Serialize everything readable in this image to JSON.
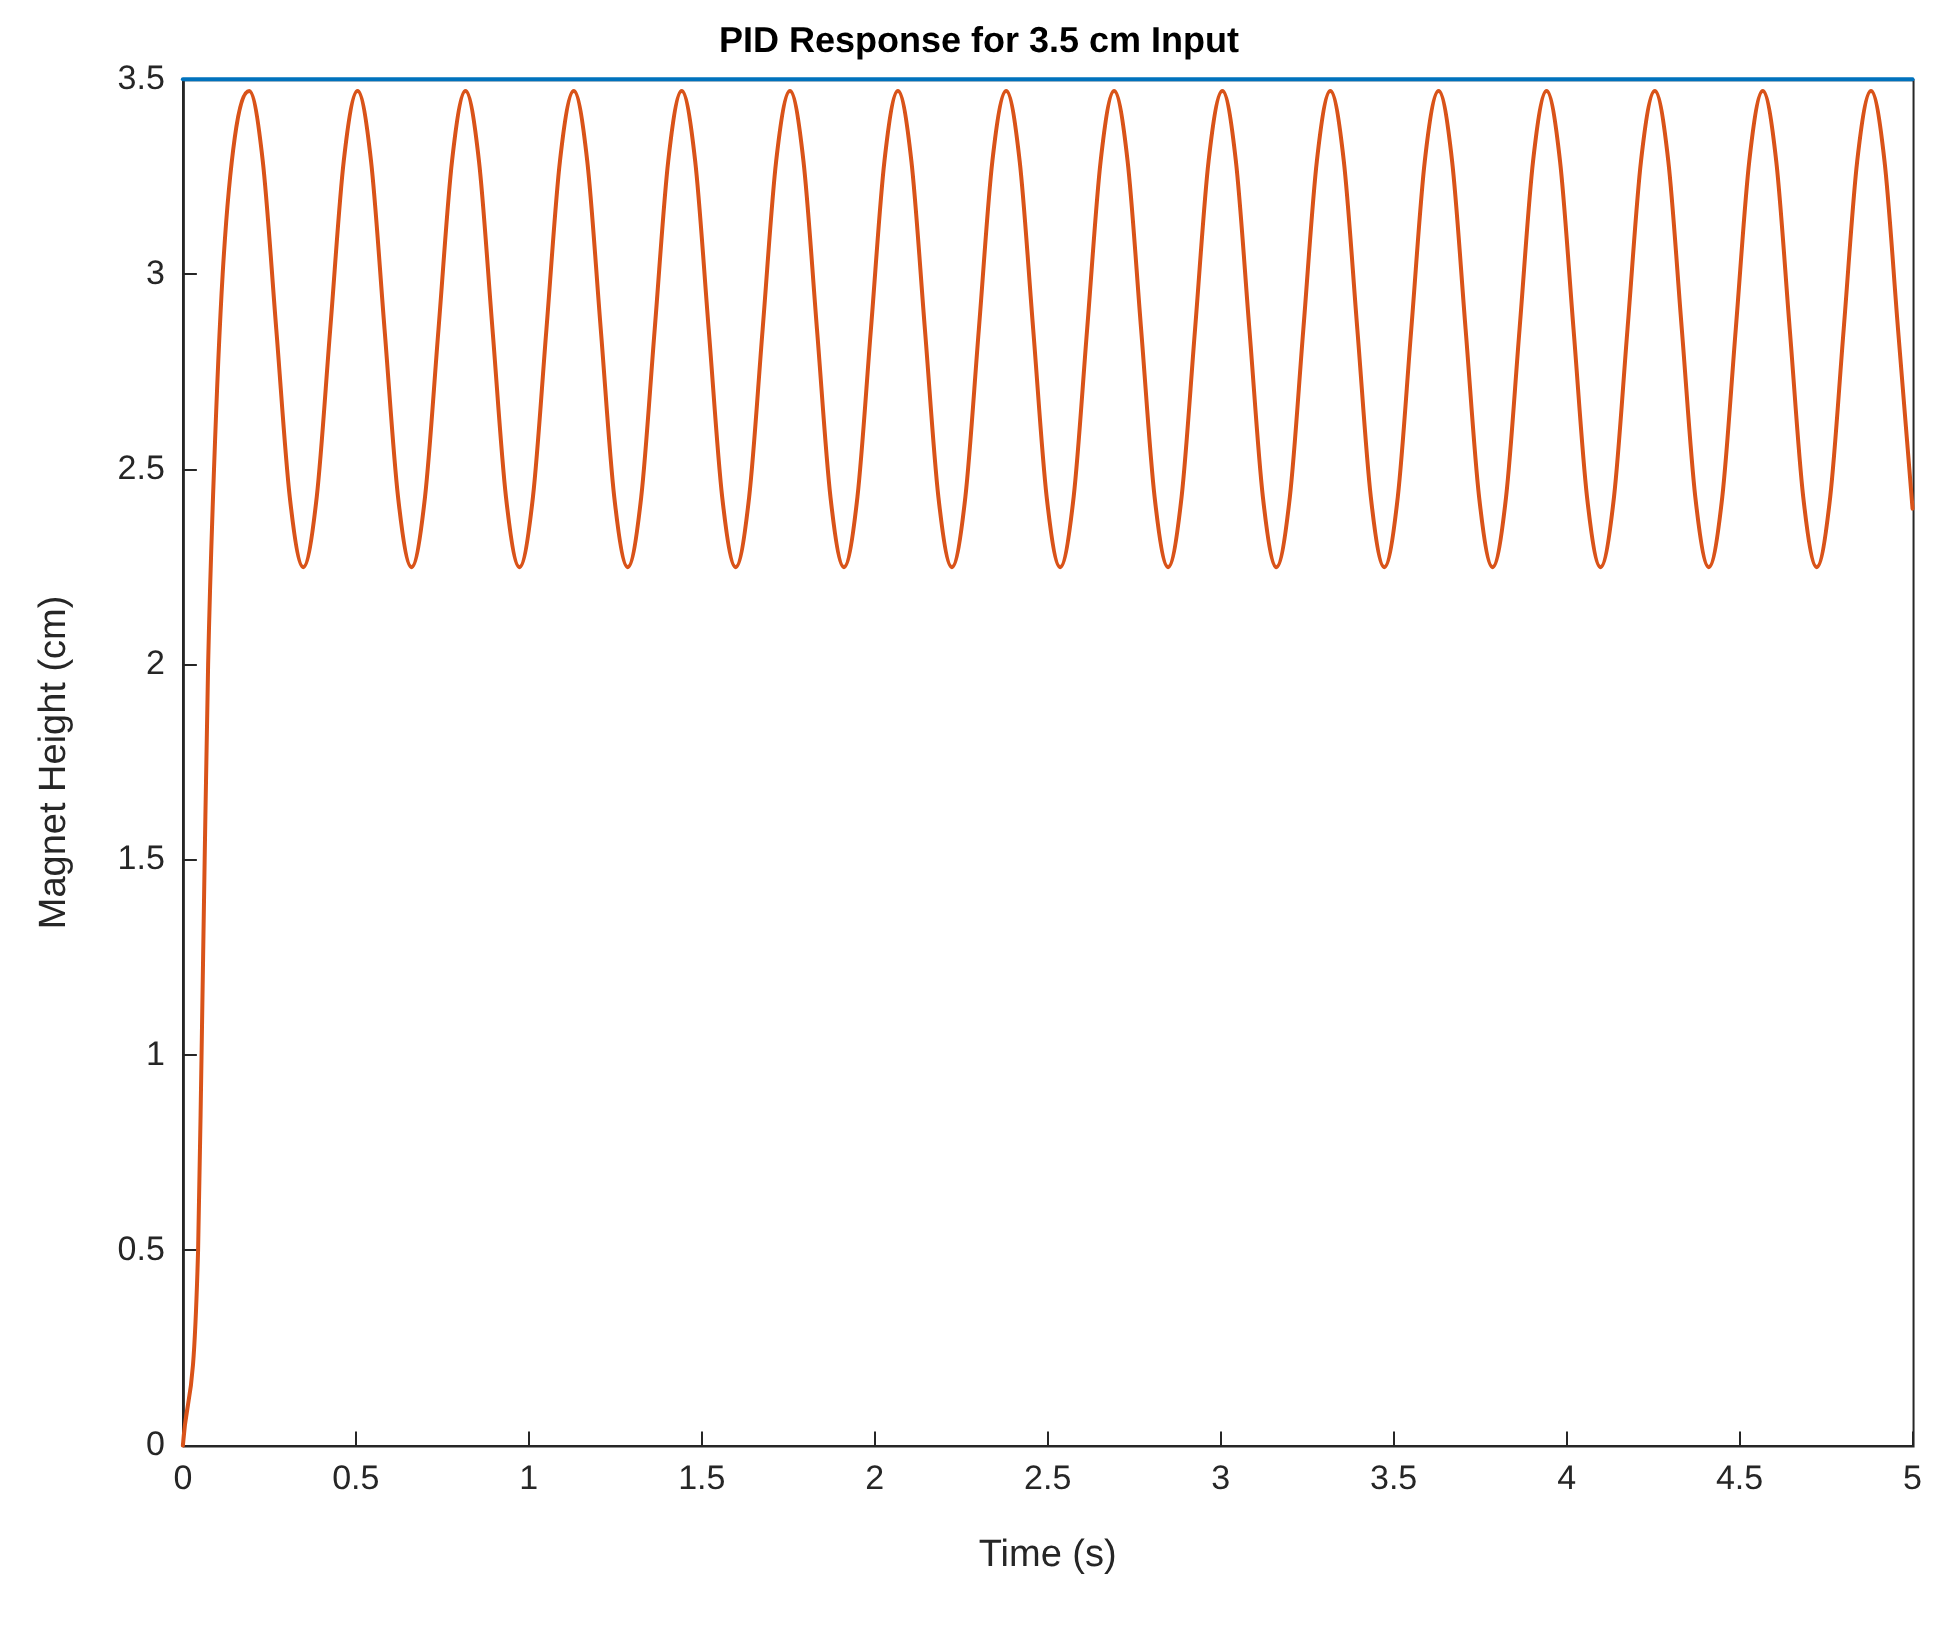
{
  "chart_data": {
    "type": "line",
    "title": "PID Response for 3.5 cm Input",
    "xlabel": "Time (s)",
    "ylabel": "Magnet Height (cm)",
    "xlim": [
      0,
      5
    ],
    "ylim": [
      0,
      3.5
    ],
    "xticks": [
      0,
      0.5,
      1,
      1.5,
      2,
      2.5,
      3,
      3.5,
      4,
      4.5,
      5
    ],
    "yticks": [
      0,
      0.5,
      1,
      1.5,
      2,
      2.5,
      3,
      3.5
    ],
    "grid": false,
    "marker": "none",
    "series": [
      {
        "color": "#0072bd",
        "x": [
          0,
          5
        ],
        "values": [
          3.5,
          3.5
        ]
      },
      {
        "color": "#d95319",
        "x": [
          0,
          0.044,
          0.054,
          0.063,
          0.073,
          0.09,
          0.115,
          0.15,
          0.192,
          0.231,
          0.27,
          0.309,
          0.348,
          0.387,
          0.426,
          0.465,
          0.505,
          0.544,
          0.583,
          0.622,
          0.661,
          0.7,
          0.739,
          0.778,
          0.817,
          0.856,
          0.895,
          0.934,
          0.973,
          1.012,
          1.051,
          1.09,
          1.13,
          1.169,
          1.208,
          1.247,
          1.286,
          1.325,
          1.364,
          1.403,
          1.442,
          1.481,
          1.52,
          1.559,
          1.598,
          1.637,
          1.676,
          1.715,
          1.755,
          1.794,
          1.833,
          1.872,
          1.911,
          1.95,
          1.989,
          2.028,
          2.067,
          2.106,
          2.145,
          2.184,
          2.223,
          2.262,
          2.301,
          2.34,
          2.38,
          2.419,
          2.458,
          2.497,
          2.536,
          2.575,
          2.614,
          2.653,
          2.692,
          2.731,
          2.77,
          2.809,
          2.848,
          2.887,
          2.926,
          2.965,
          3.005,
          3.044,
          3.083,
          3.122,
          3.161,
          3.2,
          3.239,
          3.278,
          3.317,
          3.356,
          3.395,
          3.434,
          3.473,
          3.512,
          3.551,
          3.59,
          3.63,
          3.669,
          3.708,
          3.747,
          3.786,
          3.825,
          3.864,
          3.903,
          3.942,
          3.981,
          4.02,
          4.059,
          4.098,
          4.137,
          4.176,
          4.215,
          4.255,
          4.294,
          4.333,
          4.372,
          4.411,
          4.45,
          4.489,
          4.528,
          4.567,
          4.606,
          4.645,
          4.684,
          4.723,
          4.762,
          4.801,
          4.84,
          4.88,
          4.919,
          4.958,
          5.0
        ],
        "values": [
          0,
          0.5,
          1,
          1.5,
          2,
          2.5,
          3,
          3.35,
          3.47,
          3.29,
          2.86,
          2.43,
          2.25,
          2.43,
          2.86,
          3.29,
          3.47,
          3.29,
          2.86,
          2.43,
          2.25,
          2.43,
          2.86,
          3.29,
          3.47,
          3.29,
          2.86,
          2.43,
          2.25,
          2.43,
          2.86,
          3.29,
          3.47,
          3.29,
          2.86,
          2.43,
          2.25,
          2.43,
          2.86,
          3.29,
          3.47,
          3.29,
          2.86,
          2.43,
          2.25,
          2.43,
          2.86,
          3.29,
          3.47,
          3.29,
          2.86,
          2.43,
          2.25,
          2.43,
          2.86,
          3.29,
          3.47,
          3.29,
          2.86,
          2.43,
          2.25,
          2.43,
          2.86,
          3.29,
          3.47,
          3.29,
          2.86,
          2.43,
          2.25,
          2.43,
          2.86,
          3.29,
          3.47,
          3.29,
          2.86,
          2.43,
          2.25,
          2.43,
          2.86,
          3.29,
          3.47,
          3.29,
          2.86,
          2.43,
          2.25,
          2.43,
          2.86,
          3.29,
          3.47,
          3.29,
          2.86,
          2.43,
          2.25,
          2.43,
          2.86,
          3.29,
          3.47,
          3.29,
          2.86,
          2.43,
          2.25,
          2.43,
          2.86,
          3.29,
          3.47,
          3.29,
          2.86,
          2.43,
          2.25,
          2.43,
          2.86,
          3.29,
          3.47,
          3.29,
          2.86,
          2.43,
          2.25,
          2.43,
          2.86,
          3.29,
          3.47,
          3.29,
          2.86,
          2.43,
          2.25,
          2.43,
          2.86,
          3.29,
          3.47,
          3.29,
          2.86,
          2.4
        ]
      }
    ]
  }
}
